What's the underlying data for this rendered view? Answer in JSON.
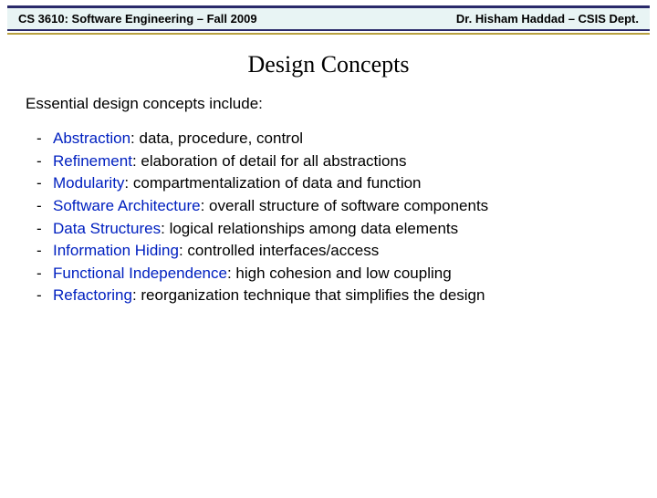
{
  "header": {
    "left": "CS 3610: Software Engineering – Fall 2009",
    "right": "Dr. Hisham Haddad – CSIS Dept."
  },
  "title": "Design Concepts",
  "intro": "Essential design concepts include:",
  "bullets": [
    {
      "term": "Abstraction",
      "sep": ": ",
      "desc": "data, procedure, control"
    },
    {
      "term": "Refinement",
      "sep": ": ",
      "desc": "elaboration of detail for all abstractions"
    },
    {
      "term": "Modularity",
      "sep": ": ",
      "desc": "compartmentalization of data and function"
    },
    {
      "term": "Software Architecture",
      "sep": ": ",
      "desc": "overall structure of software components"
    },
    {
      "term": "Data Structures",
      "sep": ": ",
      "desc": "logical relationships among data elements"
    },
    {
      "term": "Information Hiding",
      "sep": ": ",
      "desc": "controlled interfaces/access"
    },
    {
      "term": "Functional Independence",
      "sep": ": ",
      "desc": "high cohesion and low coupling"
    },
    {
      "term": "Refactoring",
      "sep": ": ",
      "desc": "reorganization technique that simplifies the design"
    }
  ],
  "styling": {
    "header_bg": "#e8f4f4",
    "header_border": "#2a2a6a",
    "accent_underline": "#b8a040",
    "term_color": "#0020c0",
    "body_color": "#000000",
    "title_font": "Times New Roman",
    "body_font": "Arial",
    "title_fontsize": 26,
    "body_fontsize": 17,
    "header_fontsize": 13
  }
}
